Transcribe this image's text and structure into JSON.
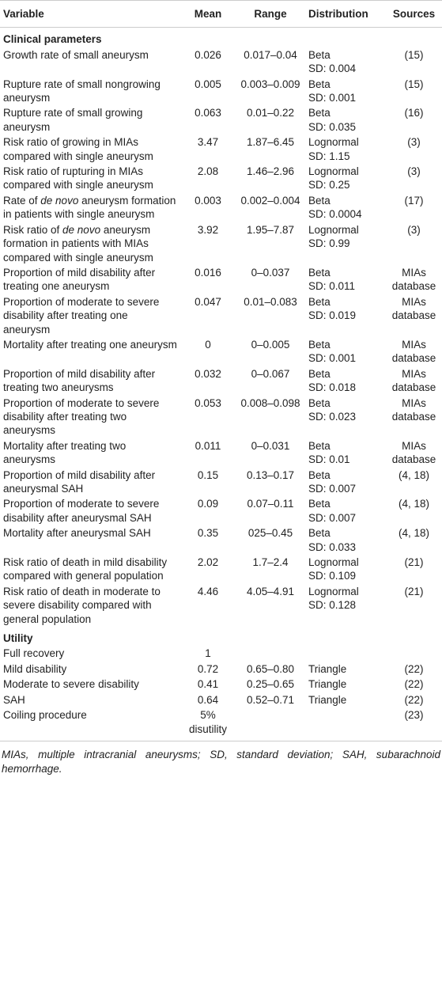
{
  "table": {
    "header": [
      "Variable",
      "Mean",
      "Range",
      "Distribution",
      "Sources"
    ],
    "sections": [
      {
        "title": "Clinical parameters",
        "rows": [
          [
            "Growth rate of small aneurysm",
            "0.026",
            "0.017–0.04",
            [
              "Beta",
              "SD: 0.004"
            ],
            "(15)"
          ],
          [
            "Rupture rate of small nongrowing aneurysm",
            "0.005",
            "0.003–0.009",
            [
              "Beta",
              "SD: 0.001"
            ],
            "(15)"
          ],
          [
            "Rupture rate of small growing aneurysm",
            "0.063",
            "0.01–0.22",
            [
              "Beta",
              "SD: 0.035"
            ],
            "(16)"
          ],
          [
            "Risk ratio of growing in MIAs compared with single aneurysm",
            "3.47",
            "1.87–6.45",
            [
              "Lognormal",
              "SD: 1.15"
            ],
            "(3)"
          ],
          [
            "Risk ratio of rupturing in MIAs compared with single aneurysm",
            "2.08",
            "1.46–2.96",
            [
              "Lognormal",
              "SD: 0.25"
            ],
            "(3)"
          ],
          [
            [
              "Rate of ",
              "de novo",
              " aneurysm formation in patients with single aneurysm"
            ],
            "0.003",
            "0.002–0.004",
            [
              "Beta",
              "SD: 0.0004"
            ],
            "(17)"
          ],
          [
            [
              "Risk ratio of ",
              "de novo",
              " aneurysm formation in patients with MIAs compared with single aneurysm"
            ],
            "3.92",
            "1.95–7.87",
            [
              "Lognormal",
              "SD: 0.99"
            ],
            "(3)"
          ],
          [
            "Proportion of mild disability after treating one aneurysm",
            "0.016",
            "0–0.037",
            [
              "Beta",
              "SD: 0.011"
            ],
            "MIAs database"
          ],
          [
            "Proportion of moderate to severe disability after treating one aneurysm",
            "0.047",
            "0.01–0.083",
            [
              "Beta",
              "SD: 0.019"
            ],
            "MIAs database"
          ],
          [
            "Mortality after treating one aneurysm",
            "0",
            "0–0.005",
            [
              "Beta",
              "SD: 0.001"
            ],
            "MIAs database"
          ],
          [
            "Proportion of mild disability after treating two aneurysms",
            "0.032",
            "0–0.067",
            [
              "Beta",
              "SD: 0.018"
            ],
            "MIAs database"
          ],
          [
            "Proportion of moderate to severe disability after treating two aneurysms",
            "0.053",
            "0.008–0.098",
            [
              "Beta",
              "SD: 0.023"
            ],
            "MIAs database"
          ],
          [
            "Mortality after treating two aneurysms",
            "0.011",
            "0–0.031",
            [
              "Beta",
              "SD: 0.01"
            ],
            "MIAs database"
          ],
          [
            "Proportion of mild disability after aneurysmal SAH",
            "0.15",
            "0.13–0.17",
            [
              "Beta",
              "SD: 0.007"
            ],
            "(4, 18)"
          ],
          [
            "Proportion of moderate to severe disability after aneurysmal SAH",
            "0.09",
            "0.07–0.11",
            [
              "Beta",
              "SD: 0.007"
            ],
            "(4, 18)"
          ],
          [
            "Mortality after aneurysmal SAH",
            "0.35",
            "025–0.45",
            [
              "Beta",
              "SD: 0.033"
            ],
            "(4, 18)"
          ],
          [
            "Risk ratio of death in mild disability compared with general population",
            "2.02",
            "1.7–2.4",
            [
              "Lognormal",
              "SD: 0.109"
            ],
            "(21)"
          ],
          [
            "Risk ratio of death in moderate to severe disability compared with general population",
            "4.46",
            "4.05–4.91",
            [
              "Lognormal",
              "SD: 0.128"
            ],
            "(21)"
          ]
        ]
      },
      {
        "title": "Utility",
        "rows": [
          [
            "Full recovery",
            "1",
            null,
            null,
            null
          ],
          [
            "Mild disability",
            "0.72",
            "0.65–0.80",
            [
              "Triangle"
            ],
            "(22)"
          ],
          [
            "Moderate to severe disability",
            "0.41",
            "0.25–0.65",
            [
              "Triangle"
            ],
            "(22)"
          ],
          [
            "SAH",
            "0.64",
            "0.52–0.71",
            [
              "Triangle"
            ],
            "(22)"
          ],
          [
            "Coiling procedure",
            "5% disutility",
            null,
            null,
            "(23)"
          ]
        ]
      }
    ]
  },
  "footnote": "MIAs, multiple intracranial aneurysms; SD, standard deviation; SAH, subarachnoid hemorrhage."
}
